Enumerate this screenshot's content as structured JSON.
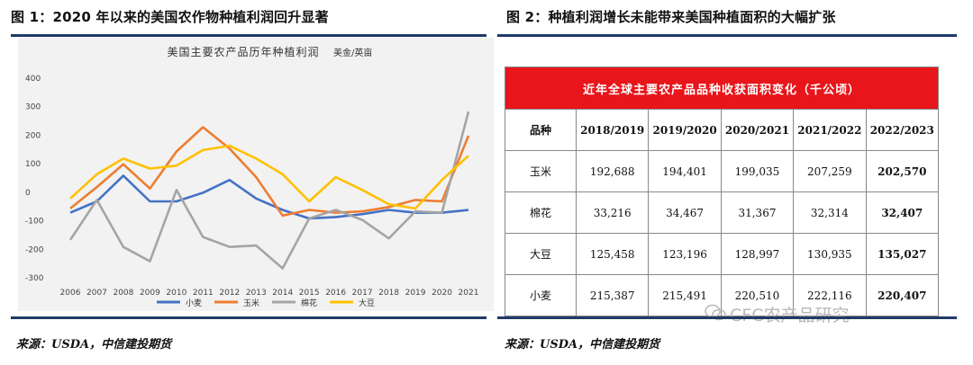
{
  "figure1": {
    "title": "图 1：2020 年以来的美国农作物种植利润回升显著",
    "source": "来源：USDA，中信建投期货",
    "chart_data": {
      "type": "line",
      "title": "美国主要农产品历年种植利润",
      "unit": "美金/英亩",
      "x": [
        "2006",
        "2007",
        "2008",
        "2009",
        "2010",
        "2011",
        "2012",
        "2013",
        "2014",
        "2015",
        "2016",
        "2017",
        "2018",
        "2019",
        "2020",
        "2021"
      ],
      "ylim": [
        -300,
        400
      ],
      "yticks": [
        400,
        300,
        200,
        100,
        0,
        -100,
        -200,
        -300
      ],
      "grid": false,
      "legend_position": "bottom",
      "series": [
        {
          "name": "小麦",
          "color": "#4472c4",
          "values": [
            -75,
            -35,
            55,
            -35,
            -35,
            -5,
            40,
            -25,
            -65,
            -95,
            -90,
            -80,
            -65,
            -75,
            -75,
            -65
          ]
        },
        {
          "name": "玉米",
          "color": "#ed7d31",
          "values": [
            -60,
            15,
            95,
            10,
            140,
            225,
            150,
            50,
            -85,
            -65,
            -75,
            -70,
            -55,
            -30,
            -35,
            195
          ]
        },
        {
          "name": "棉花",
          "color": "#a5a5a5",
          "values": [
            -170,
            -30,
            -195,
            -245,
            5,
            -160,
            -195,
            -190,
            -270,
            -95,
            -65,
            -100,
            -165,
            -70,
            -75,
            280
          ]
        },
        {
          "name": "大豆",
          "color": "#ffc000",
          "values": [
            -25,
            60,
            115,
            80,
            90,
            145,
            160,
            115,
            60,
            -35,
            50,
            5,
            -45,
            -60,
            40,
            125
          ]
        }
      ]
    }
  },
  "figure2": {
    "title": "图 2：种植利润增长未能带来美国种植面积的大幅扩张",
    "source": "来源：USDA，中信建投期货",
    "watermark": "CFC农产品研究",
    "table": {
      "banner": "近年全球主要农产品品种收获面积变化（千公顷）",
      "header": [
        "品种",
        "2018/2019",
        "2019/2020",
        "2020/2021",
        "2021/2022",
        "2022/2023"
      ],
      "rows": [
        {
          "name": "玉米",
          "values": [
            "192,688",
            "194,401",
            "199,035",
            "207,259",
            "202,570"
          ]
        },
        {
          "name": "棉花",
          "values": [
            "33,216",
            "34,467",
            "31,367",
            "32,314",
            "32,407"
          ]
        },
        {
          "name": "大豆",
          "values": [
            "125,458",
            "123,196",
            "128,997",
            "130,935",
            "135,027"
          ]
        },
        {
          "name": "小麦",
          "values": [
            "215,387",
            "215,491",
            "220,510",
            "222,116",
            "220,407"
          ]
        }
      ]
    }
  }
}
